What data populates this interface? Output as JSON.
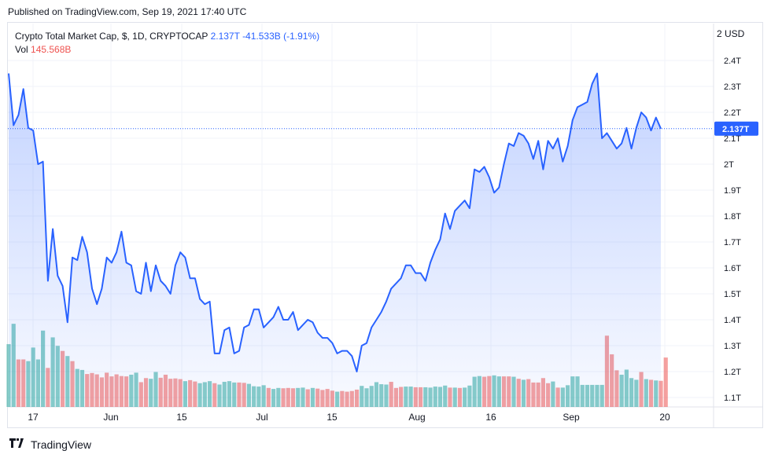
{
  "header": {
    "published_text": "Published on TradingView.com, Sep 19, 2021 17:40 UTC"
  },
  "legend": {
    "symbol": "Crypto Total Market Cap, $, 1D, CRYPTOCAP",
    "last_value": "2.137T",
    "change": "-41.533B (-1.91%)",
    "vol_label": "Vol",
    "vol_value": "145.568B"
  },
  "price_scale": {
    "currency_button": "2 USD",
    "last_price_badge": "2.137T"
  },
  "footer": {
    "brand_text": "TradingView",
    "logo_icon": "tradingview-logo-icon"
  },
  "colors": {
    "line": "#2962ff",
    "area_top": "rgba(41,98,255,0.28)",
    "area_bottom": "rgba(41,98,255,0.03)",
    "vol_up": "#26a69a",
    "vol_down": "#ef5350"
  },
  "chart_data": {
    "type": "area",
    "title": "",
    "x_tick_labels": [
      "17",
      "Jun",
      "15",
      "Jul",
      "15",
      "Aug",
      "16",
      "Sep",
      "20"
    ],
    "y_tick_labels": [
      "2.4T",
      "2.3T",
      "2.2T",
      "2.1T",
      "2T",
      "1.9T",
      "1.8T",
      "1.7T",
      "1.6T",
      "1.5T",
      "1.4T",
      "1.3T",
      "1.2T",
      "1.1T"
    ],
    "ylim": [
      1.08,
      2.47
    ],
    "y_unit": "T USD",
    "series": [
      {
        "name": "Crypto Total Market Cap",
        "x_start": "2021-05-13",
        "x_end": "2021-09-19",
        "values": [
          2.35,
          2.15,
          2.19,
          2.29,
          2.14,
          2.13,
          2.0,
          2.01,
          1.55,
          1.75,
          1.57,
          1.53,
          1.39,
          1.64,
          1.63,
          1.72,
          1.66,
          1.52,
          1.46,
          1.52,
          1.64,
          1.62,
          1.66,
          1.74,
          1.62,
          1.61,
          1.51,
          1.5,
          1.62,
          1.51,
          1.61,
          1.55,
          1.53,
          1.5,
          1.61,
          1.66,
          1.64,
          1.56,
          1.56,
          1.48,
          1.46,
          1.47,
          1.27,
          1.27,
          1.36,
          1.37,
          1.27,
          1.28,
          1.37,
          1.38,
          1.44,
          1.44,
          1.37,
          1.39,
          1.41,
          1.45,
          1.4,
          1.4,
          1.43,
          1.36,
          1.38,
          1.4,
          1.39,
          1.35,
          1.33,
          1.33,
          1.31,
          1.27,
          1.28,
          1.28,
          1.26,
          1.2,
          1.3,
          1.31,
          1.37,
          1.4,
          1.43,
          1.47,
          1.52,
          1.54,
          1.56,
          1.61,
          1.61,
          1.58,
          1.58,
          1.55,
          1.62,
          1.67,
          1.71,
          1.81,
          1.75,
          1.82,
          1.84,
          1.86,
          1.83,
          1.98,
          1.97,
          1.99,
          1.95,
          1.89,
          1.91,
          2.0,
          2.08,
          2.07,
          2.12,
          2.11,
          2.08,
          2.02,
          2.09,
          1.98,
          2.09,
          2.06,
          2.1,
          2.01,
          2.07,
          2.17,
          2.22,
          2.23,
          2.24,
          2.31,
          2.35,
          2.1,
          2.12,
          2.09,
          2.06,
          2.08,
          2.14,
          2.06,
          2.14,
          2.2,
          2.18,
          2.13,
          2.18,
          2.137
        ]
      },
      {
        "name": "Vol",
        "unit": "B USD",
        "values": [
          185,
          245,
          140,
          140,
          135,
          175,
          140,
          225,
          115,
          205,
          180,
          165,
          150,
          135,
          112,
          109,
          97,
          100,
          96,
          87,
          101,
          90,
          96,
          91,
          90,
          95,
          101,
          73,
          85,
          83,
          103,
          86,
          95,
          83,
          84,
          82,
          76,
          79,
          75,
          70,
          73,
          76,
          70,
          66,
          74,
          76,
          72,
          72,
          71,
          68,
          61,
          60,
          64,
          56,
          53,
          56,
          55,
          56,
          55,
          56,
          57,
          52,
          56,
          54,
          50,
          53,
          48,
          45,
          47,
          45,
          47,
          51,
          62,
          55,
          62,
          73,
          67,
          66,
          74,
          56,
          59,
          60,
          60,
          58,
          58,
          58,
          57,
          60,
          59,
          63,
          57,
          57,
          56,
          57,
          63,
          89,
          91,
          89,
          91,
          93,
          90,
          90,
          90,
          89,
          83,
          80,
          82,
          72,
          72,
          85,
          70,
          75,
          57,
          57,
          64,
          90,
          90,
          65,
          65,
          65,
          65,
          65,
          210,
          155,
          108,
          95,
          110,
          85,
          80,
          103,
          82,
          80,
          78,
          77,
          145.568
        ],
        "up": [
          1,
          1,
          0,
          0,
          1,
          1,
          1,
          1,
          0,
          1,
          1,
          0,
          1,
          0,
          1,
          1,
          0,
          0,
          0,
          0,
          0,
          0,
          0,
          0,
          0,
          1,
          1,
          0,
          0,
          1,
          1,
          0,
          0,
          0,
          0,
          0,
          1,
          0,
          0,
          1,
          1,
          1,
          0,
          1,
          1,
          1,
          1,
          0,
          0,
          1,
          1,
          1,
          1,
          0,
          1,
          1,
          0,
          0,
          0,
          1,
          1,
          0,
          1,
          0,
          0,
          0,
          0,
          1,
          0,
          0,
          0,
          0,
          1,
          1,
          1,
          1,
          1,
          1,
          0,
          0,
          0,
          1,
          1,
          0,
          0,
          1,
          1,
          1,
          1,
          1,
          0,
          1,
          0,
          1,
          1,
          1,
          1,
          0,
          0,
          1,
          1,
          0,
          0,
          1,
          0,
          1,
          0,
          0,
          0,
          0,
          0,
          1,
          0,
          1,
          1,
          1,
          1,
          1,
          1,
          1,
          1,
          1,
          0,
          0,
          0,
          1,
          1,
          1,
          1,
          0,
          1,
          0,
          1,
          0,
          0
        ]
      }
    ],
    "grid": true,
    "last_value_line": 2.137
  }
}
